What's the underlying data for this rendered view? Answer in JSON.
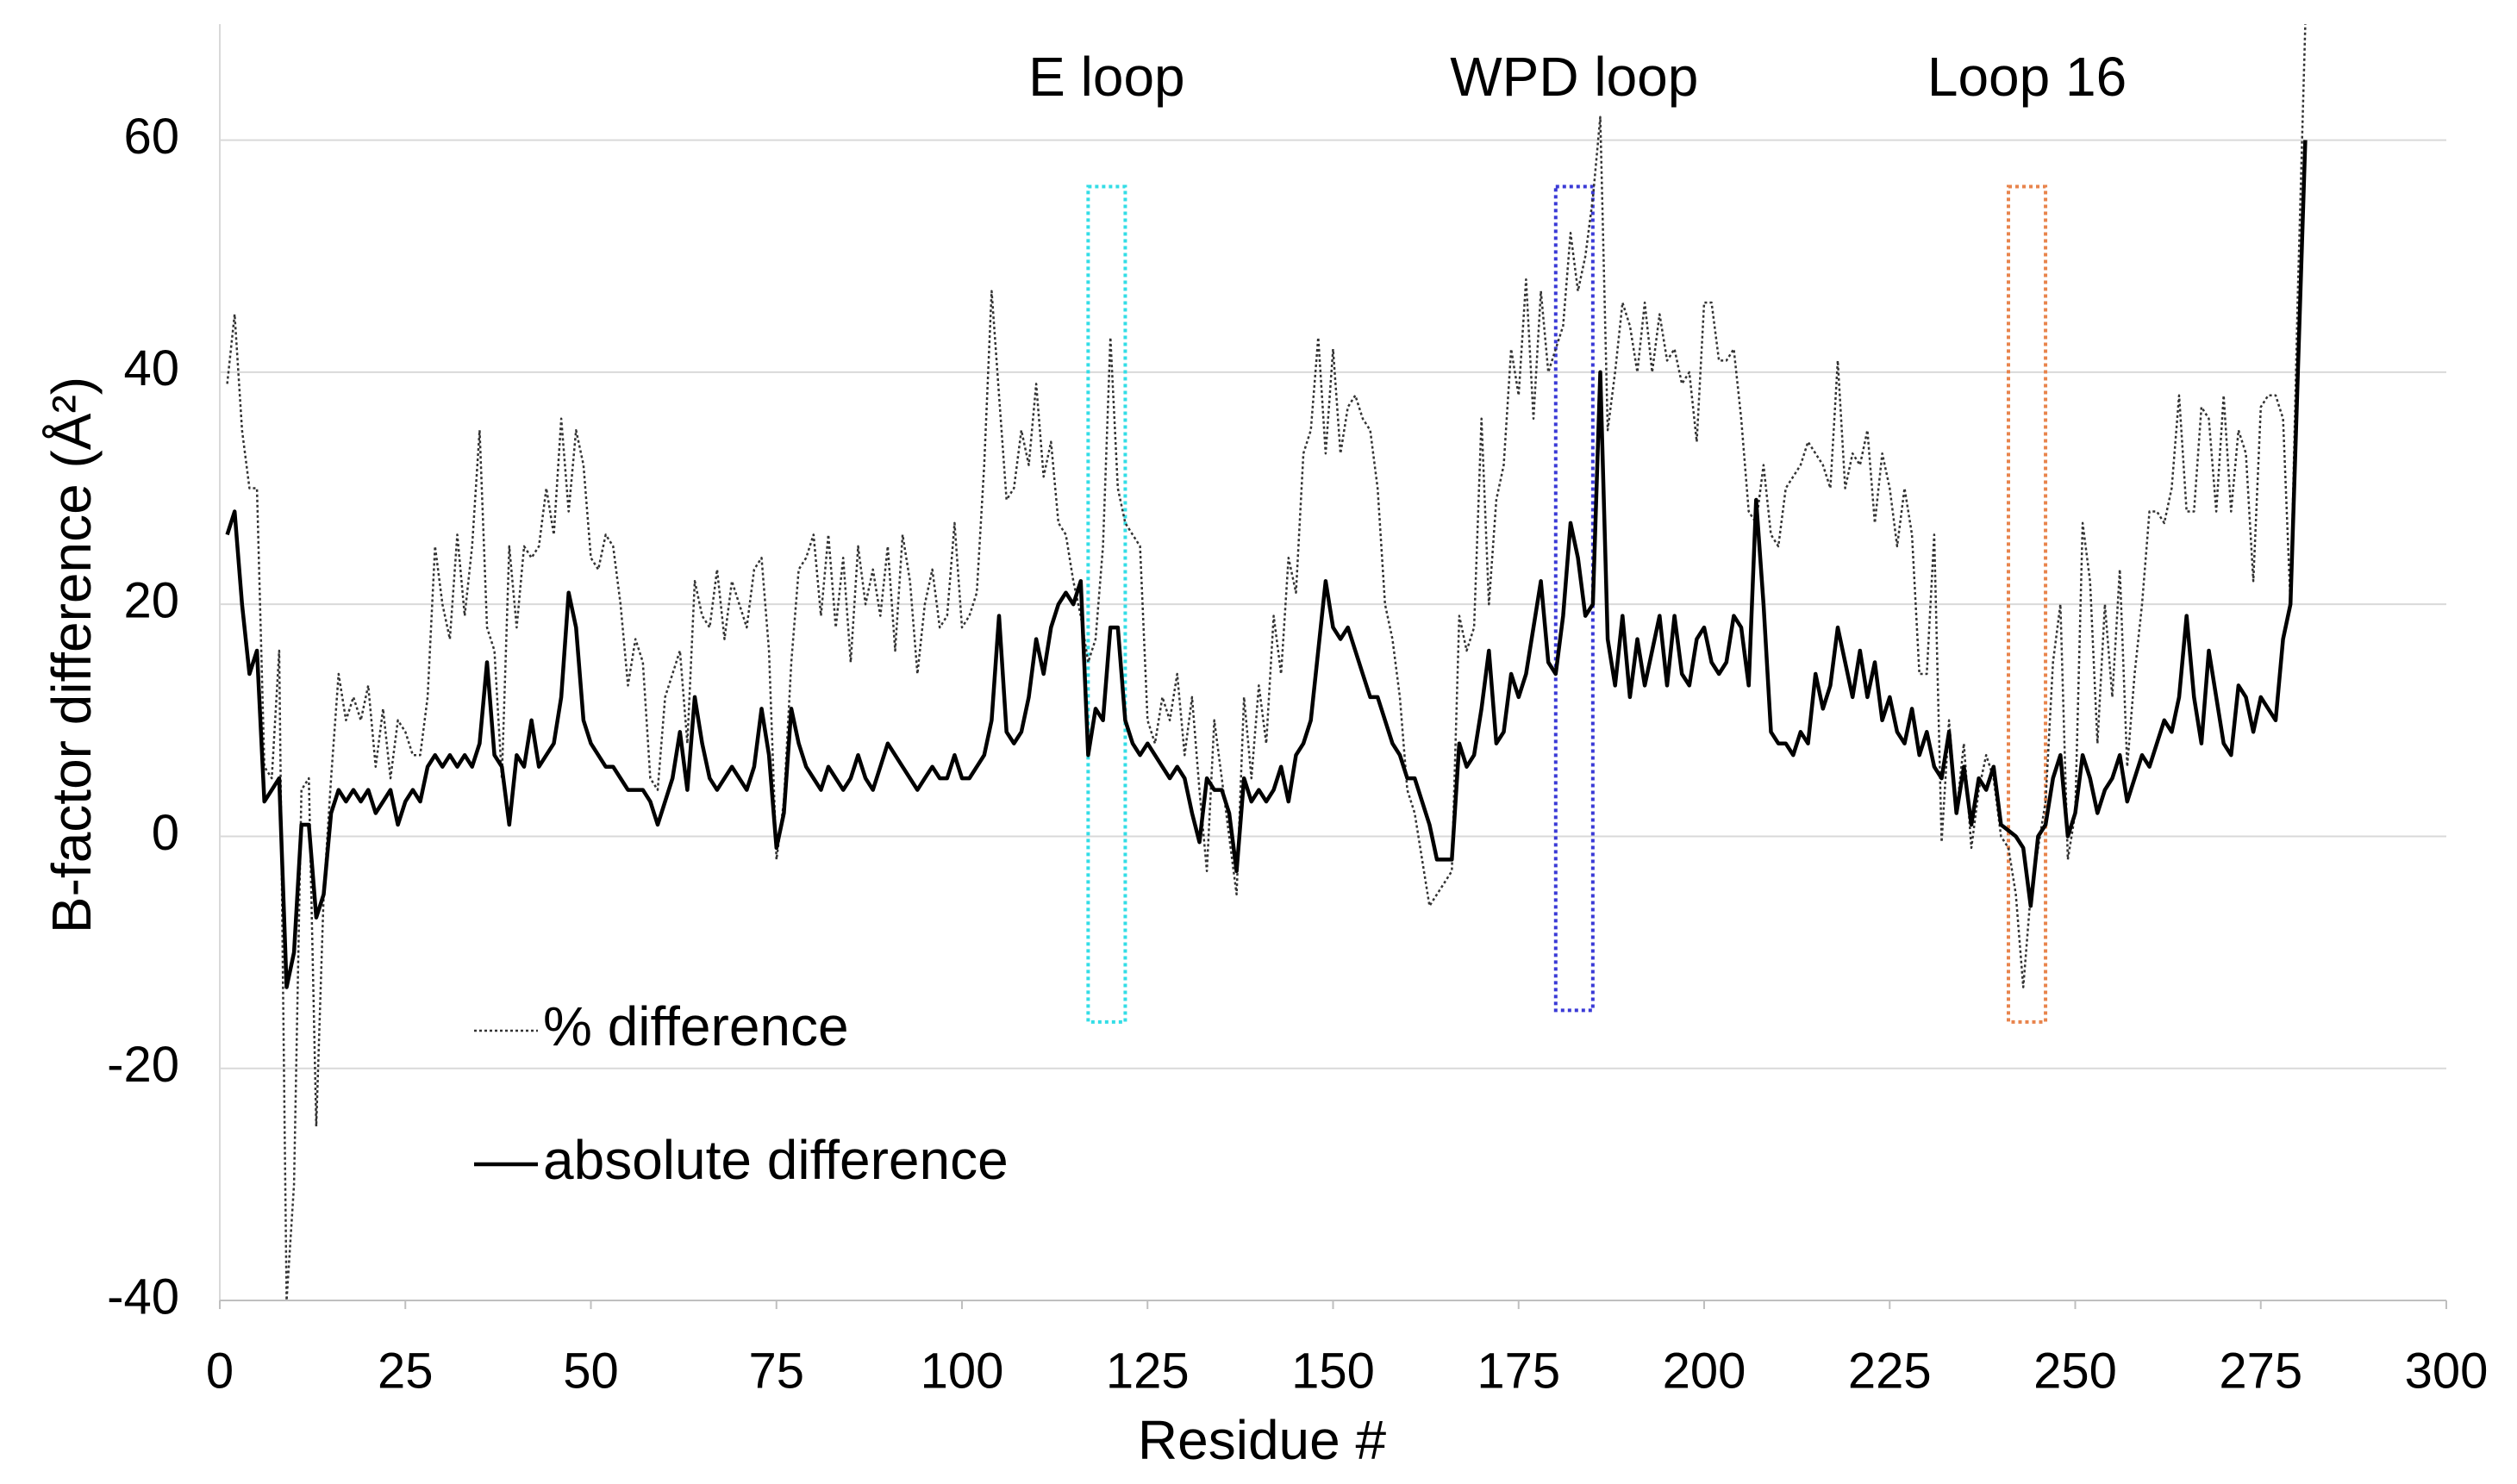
{
  "chart_data": {
    "type": "line",
    "x_label": "Residue #",
    "y_label": "B-factor difference (Å²)",
    "xlim": [
      0,
      300
    ],
    "xticks": [
      0,
      25,
      50,
      75,
      100,
      125,
      150,
      175,
      200,
      225,
      250,
      275,
      300
    ],
    "ylim": [
      -40,
      70
    ],
    "yticks": [
      -40,
      -20,
      0,
      20,
      40,
      60
    ],
    "grid": true,
    "legend": "lower left",
    "x": [
      1,
      2,
      3,
      4,
      5,
      6,
      7,
      8,
      9,
      10,
      11,
      12,
      13,
      14,
      15,
      16,
      17,
      18,
      19,
      20,
      21,
      22,
      23,
      24,
      25,
      26,
      27,
      28,
      29,
      30,
      31,
      32,
      33,
      34,
      35,
      36,
      37,
      38,
      39,
      40,
      41,
      42,
      43,
      44,
      45,
      46,
      47,
      48,
      49,
      50,
      51,
      52,
      53,
      54,
      55,
      56,
      57,
      58,
      59,
      60,
      61,
      62,
      63,
      64,
      65,
      66,
      67,
      68,
      69,
      70,
      71,
      72,
      73,
      74,
      75,
      76,
      77,
      78,
      79,
      80,
      81,
      82,
      83,
      84,
      85,
      86,
      87,
      88,
      89,
      90,
      91,
      92,
      93,
      94,
      95,
      96,
      97,
      98,
      99,
      100,
      101,
      102,
      103,
      104,
      105,
      106,
      107,
      108,
      109,
      110,
      111,
      112,
      113,
      114,
      115,
      116,
      117,
      118,
      119,
      120,
      121,
      122,
      123,
      124,
      125,
      126,
      127,
      128,
      129,
      130,
      131,
      132,
      133,
      134,
      135,
      136,
      137,
      138,
      139,
      140,
      141,
      142,
      143,
      144,
      145,
      146,
      147,
      148,
      149,
      150,
      151,
      152,
      153,
      154,
      155,
      156,
      157,
      158,
      159,
      160,
      161,
      162,
      163,
      164,
      165,
      166,
      167,
      168,
      169,
      170,
      171,
      172,
      173,
      174,
      175,
      176,
      177,
      178,
      179,
      180,
      181,
      182,
      183,
      184,
      185,
      186,
      187,
      188,
      189,
      190,
      191,
      192,
      193,
      194,
      195,
      196,
      197,
      198,
      199,
      200,
      201,
      202,
      203,
      204,
      205,
      206,
      207,
      208,
      209,
      210,
      211,
      212,
      213,
      214,
      215,
      216,
      217,
      218,
      219,
      220,
      221,
      222,
      223,
      224,
      225,
      226,
      227,
      228,
      229,
      230,
      231,
      232,
      233,
      234,
      235,
      236,
      237,
      238,
      239,
      240,
      241,
      242,
      243,
      244,
      245,
      246,
      247,
      248,
      249,
      250,
      251,
      252,
      253,
      254,
      255,
      256,
      257,
      258,
      259,
      260,
      261,
      262,
      263,
      264,
      265,
      266,
      267,
      268,
      269,
      270,
      271,
      272,
      273,
      274,
      275,
      276,
      277,
      278,
      279,
      280,
      281
    ],
    "series": [
      {
        "name": "% difference",
        "color": "#333333",
        "style": "dotted",
        "values": [
          39,
          45,
          35,
          30,
          30,
          6,
          5,
          16,
          -40,
          -30,
          4,
          5,
          -25,
          -5,
          5,
          14,
          10,
          12,
          10,
          13,
          6,
          11,
          5,
          10,
          9,
          7,
          7,
          12,
          25,
          20,
          17,
          26,
          19,
          25,
          35,
          18,
          16,
          5,
          25,
          18,
          25,
          24,
          25,
          30,
          26,
          36,
          28,
          35,
          32,
          24,
          23,
          26,
          25,
          20,
          13,
          17,
          15,
          5,
          4,
          12,
          14,
          16,
          8,
          22,
          19,
          18,
          23,
          17,
          22,
          20,
          18,
          23,
          24,
          16,
          -2,
          3,
          15,
          23,
          24,
          26,
          19,
          26,
          18,
          24,
          15,
          25,
          20,
          23,
          19,
          25,
          16,
          26,
          22,
          14,
          20,
          23,
          18,
          19,
          27,
          18,
          19,
          21,
          32,
          47,
          38,
          29,
          30,
          35,
          32,
          39,
          31,
          34,
          27,
          26,
          22,
          19,
          15,
          17,
          25,
          43,
          30,
          27,
          26,
          25,
          10,
          8,
          12,
          10,
          14,
          7,
          12,
          4,
          -3,
          10,
          5,
          0,
          -5,
          12,
          5,
          13,
          8,
          19,
          14,
          24,
          21,
          33,
          35,
          43,
          33,
          42,
          33,
          37,
          38,
          36,
          35,
          30,
          20,
          17,
          12,
          4,
          2,
          -2,
          -6,
          -5,
          -4,
          -3,
          19,
          16,
          18,
          36,
          20,
          29,
          32,
          42,
          38,
          48,
          36,
          47,
          40,
          42,
          44,
          52,
          47,
          50,
          55,
          62,
          35,
          40,
          46,
          44,
          40,
          46,
          40,
          45,
          41,
          42,
          39,
          40,
          34,
          46,
          46,
          41,
          41,
          42,
          36,
          28,
          27,
          32,
          26,
          25,
          30,
          31,
          32,
          34,
          33,
          32,
          30,
          41,
          30,
          33,
          32,
          35,
          27,
          33,
          30,
          25,
          30,
          26,
          14,
          14,
          26,
          -0.5,
          10,
          2,
          8,
          -1,
          4,
          7,
          5,
          0,
          -1,
          -5,
          -13,
          -5,
          -1,
          3,
          15,
          20,
          -2,
          2,
          27,
          22,
          8,
          20,
          12,
          23,
          6,
          14,
          20,
          28,
          28,
          27,
          30,
          38,
          28,
          28,
          37,
          36,
          28,
          38,
          28,
          35,
          33,
          22,
          37,
          38,
          38,
          36,
          20,
          47,
          70
        ]
      },
      {
        "name": "absolute difference",
        "color": "#000000",
        "style": "solid",
        "values": [
          26,
          28,
          20,
          14,
          16,
          3,
          4,
          5,
          -13,
          -10,
          1,
          1,
          -7,
          -5,
          2,
          4,
          3,
          4,
          3,
          4,
          2,
          3,
          4,
          1,
          3,
          4,
          3,
          6,
          7,
          6,
          7,
          6,
          7,
          6,
          8,
          15,
          7,
          6,
          1,
          7,
          6,
          10,
          6,
          7,
          8,
          12,
          21,
          18,
          10,
          8,
          7,
          6,
          6,
          5,
          4,
          4,
          4,
          3,
          1,
          3,
          5,
          9,
          4,
          12,
          8,
          5,
          4,
          5,
          6,
          5,
          4,
          6,
          11,
          7,
          -1,
          2,
          11,
          8,
          6,
          5,
          4,
          6,
          5,
          4,
          5,
          7,
          5,
          4,
          6,
          8,
          7,
          6,
          5,
          4,
          5,
          6,
          5,
          5,
          7,
          5,
          5,
          6,
          7,
          10,
          19,
          9,
          8,
          9,
          12,
          17,
          14,
          18,
          20,
          21,
          20,
          22,
          7,
          11,
          10,
          18,
          18,
          10,
          8,
          7,
          8,
          7,
          6,
          5,
          6,
          5,
          2,
          -0.5,
          5,
          4,
          4,
          2,
          -3,
          5,
          3,
          4,
          3,
          4,
          6,
          3,
          7,
          8,
          10,
          16,
          22,
          18,
          17,
          18,
          16,
          14,
          12,
          12,
          10,
          8,
          7,
          5,
          5,
          3,
          1,
          -2,
          -2,
          -2,
          8,
          6,
          7,
          11,
          16,
          8,
          9,
          14,
          12,
          14,
          18,
          22,
          15,
          14,
          19,
          27,
          24,
          19,
          20,
          40,
          17,
          13,
          19,
          12,
          17,
          13,
          16,
          19,
          13,
          19,
          14,
          13,
          17,
          18,
          15,
          14,
          15,
          19,
          18,
          13,
          29,
          20,
          9,
          8,
          8,
          7,
          9,
          8,
          14,
          11,
          13,
          18,
          15,
          12,
          16,
          12,
          15,
          10,
          12,
          9,
          8,
          11,
          7,
          9,
          6,
          5,
          9,
          2,
          6,
          1,
          5,
          4,
          6,
          1,
          0.5,
          0,
          -1,
          -6,
          0,
          1,
          5,
          7,
          0,
          2,
          7,
          5,
          2,
          4,
          5,
          7,
          3,
          5,
          7,
          6,
          8,
          10,
          9,
          12,
          19,
          12,
          8,
          16,
          12,
          8,
          7,
          13,
          12,
          9,
          12,
          11,
          10,
          17,
          20,
          40,
          60
        ]
      }
    ],
    "highlights": [
      {
        "label": "E loop",
        "x": [
          117,
          122
        ],
        "y": [
          -16,
          56
        ],
        "color": "#33dde6"
      },
      {
        "label": "WPD loop",
        "x": [
          180,
          185
        ],
        "y": [
          -15,
          56
        ],
        "color": "#3a3ad6"
      },
      {
        "label": "Loop 16",
        "x": [
          241,
          246
        ],
        "y": [
          -16,
          56
        ],
        "color": "#e8844c"
      }
    ]
  }
}
